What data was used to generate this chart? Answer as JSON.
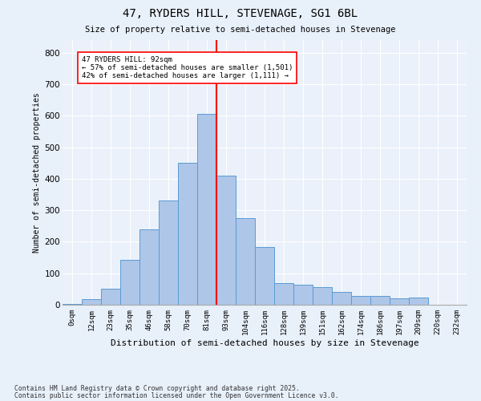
{
  "title1": "47, RYDERS HILL, STEVENAGE, SG1 6BL",
  "title2": "Size of property relative to semi-detached houses in Stevenage",
  "xlabel": "Distribution of semi-detached houses by size in Stevenage",
  "ylabel": "Number of semi-detached properties",
  "bar_labels": [
    "0sqm",
    "12sqm",
    "23sqm",
    "35sqm",
    "46sqm",
    "58sqm",
    "70sqm",
    "81sqm",
    "93sqm",
    "104sqm",
    "116sqm",
    "128sqm",
    "139sqm",
    "151sqm",
    "162sqm",
    "174sqm",
    "186sqm",
    "197sqm",
    "209sqm",
    "220sqm",
    "232sqm"
  ],
  "bar_values": [
    3,
    18,
    50,
    143,
    240,
    330,
    450,
    605,
    410,
    275,
    183,
    70,
    63,
    56,
    40,
    28,
    28,
    20,
    22,
    0,
    0
  ],
  "bar_color": "#aec6e8",
  "bar_edgecolor": "#5b9bd5",
  "vline_color": "red",
  "annotation_text": "47 RYDERS HILL: 92sqm\n← 57% of semi-detached houses are smaller (1,501)\n42% of semi-detached houses are larger (1,111) →",
  "annotation_box_edgecolor": "red",
  "annotation_box_facecolor": "white",
  "ylim": [
    0,
    840
  ],
  "yticks": [
    0,
    100,
    200,
    300,
    400,
    500,
    600,
    700,
    800
  ],
  "footer1": "Contains HM Land Registry data © Crown copyright and database right 2025.",
  "footer2": "Contains public sector information licensed under the Open Government Licence v3.0.",
  "bg_color": "#e8f0fa",
  "plot_bg_color": "#eaf1fa"
}
